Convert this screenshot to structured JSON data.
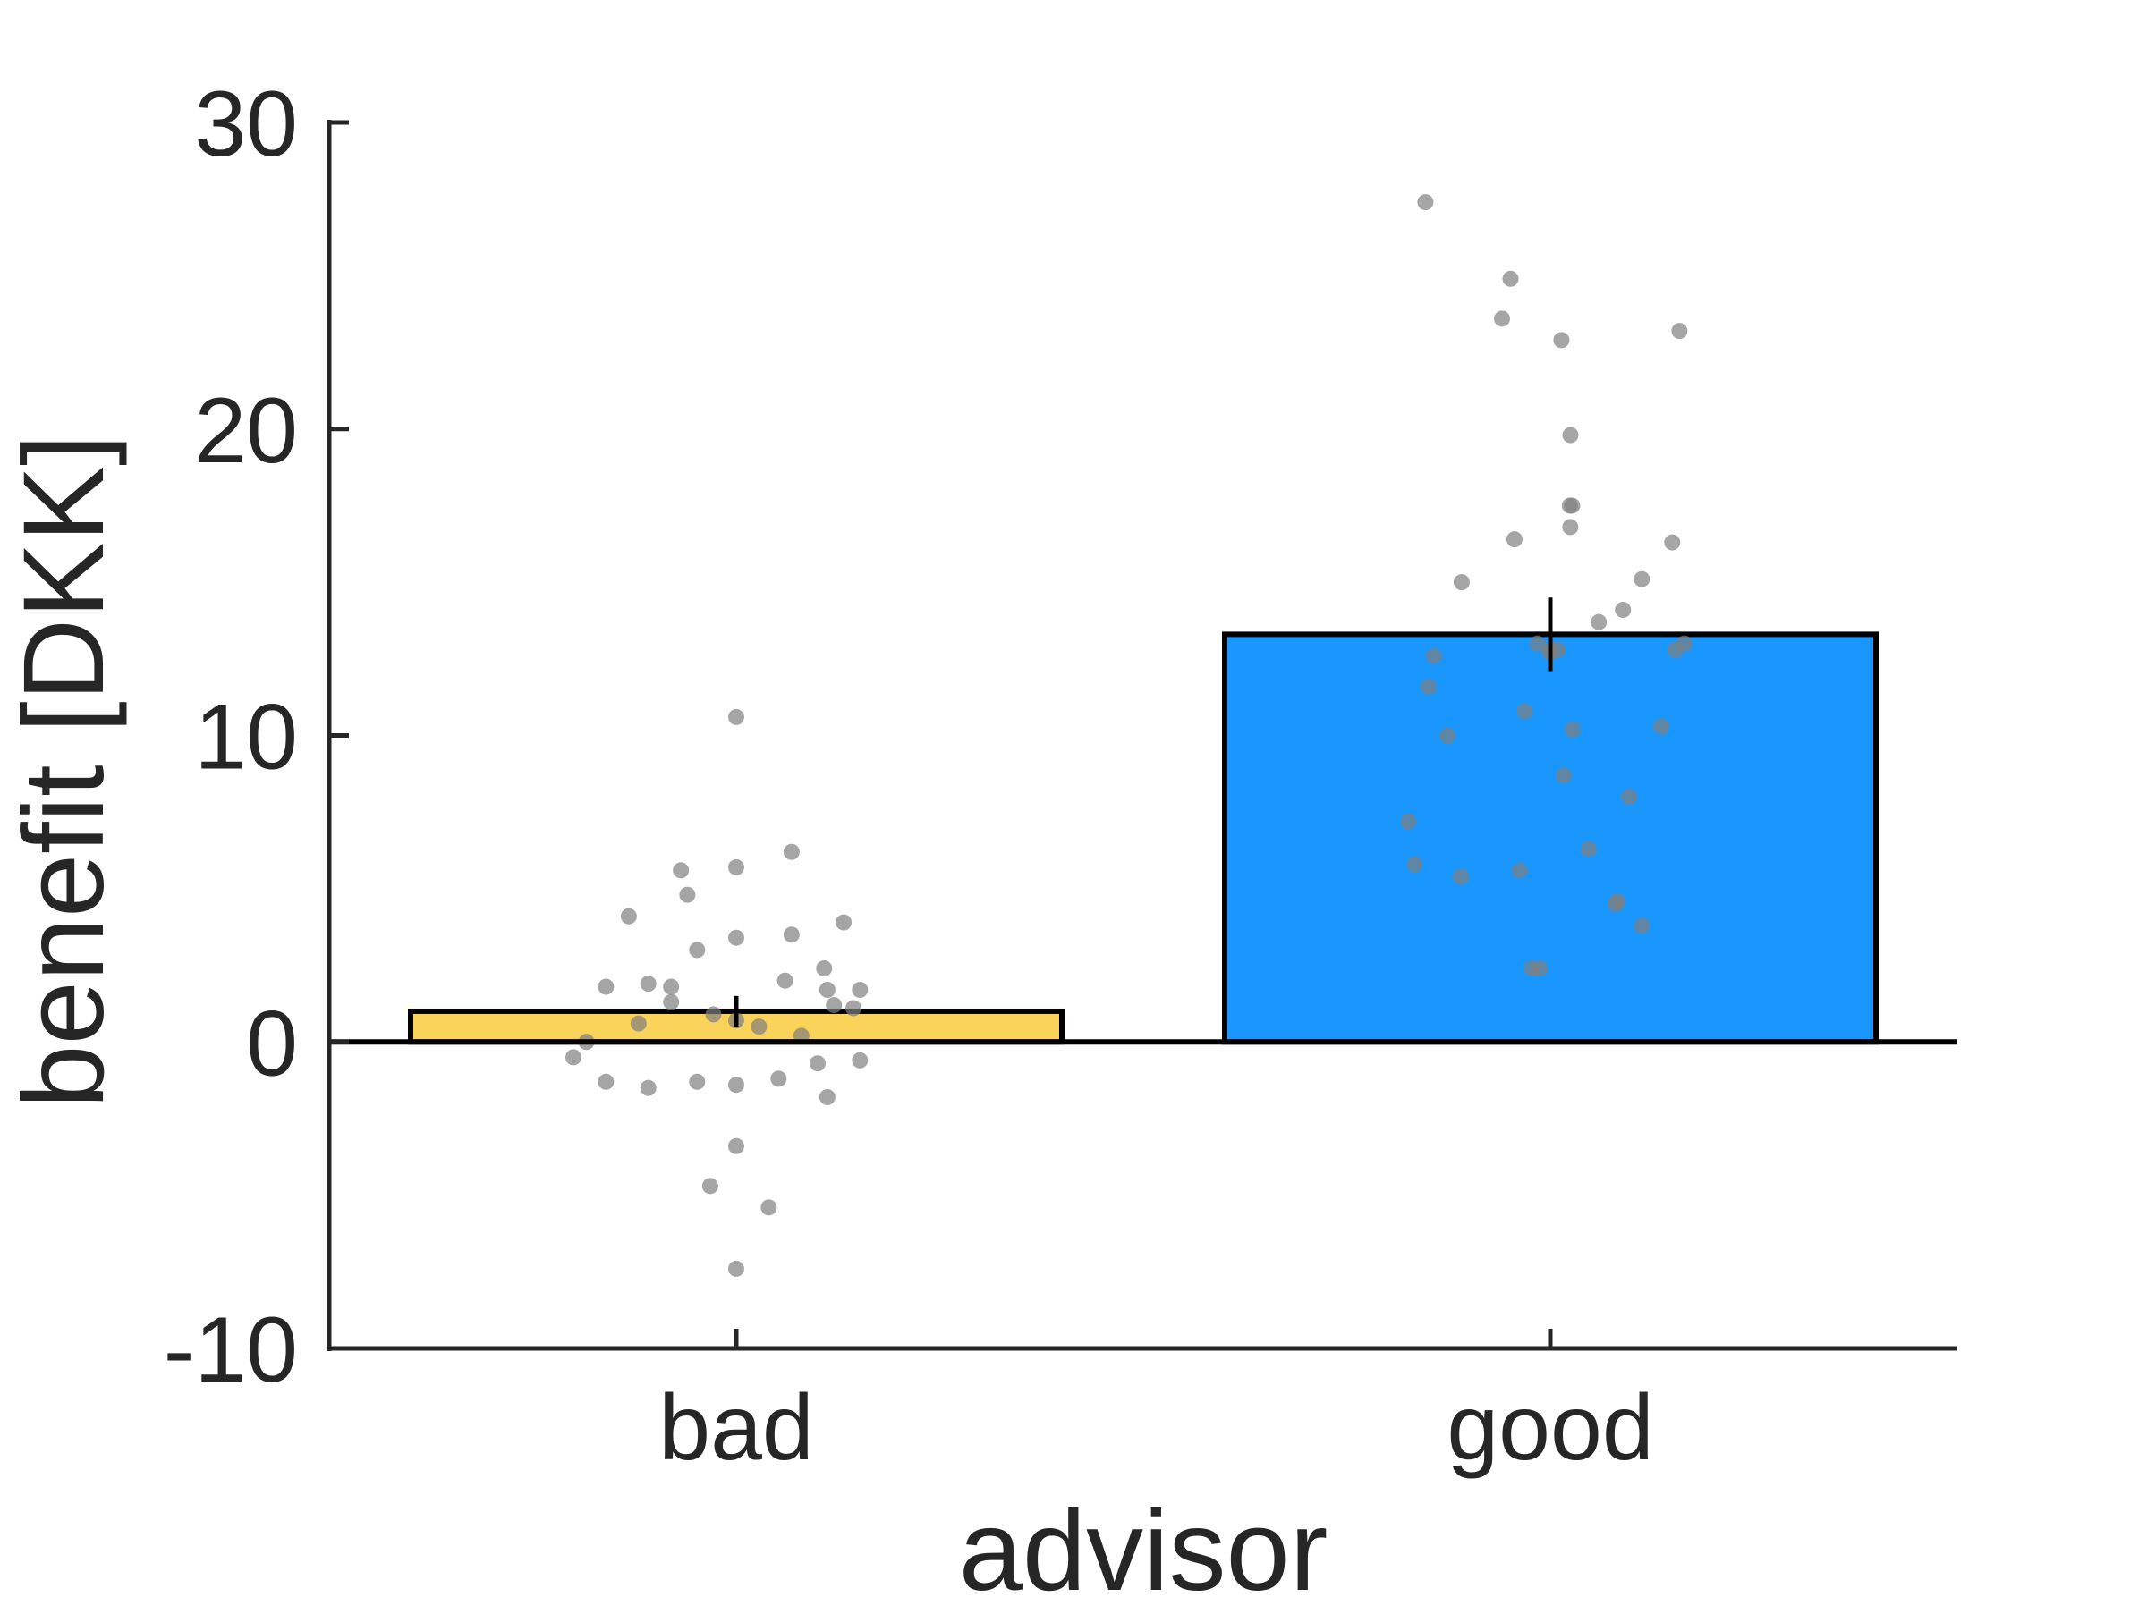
{
  "chart_data": {
    "type": "bar",
    "title": "",
    "xlabel": "advisor",
    "ylabel": "benefit [DKK]",
    "categories": [
      "bad",
      "good"
    ],
    "values": [
      1.0,
      13.3
    ],
    "errors": [
      0.5,
      1.2
    ],
    "ylim": [
      -10,
      30
    ],
    "yticks": [
      -10,
      0,
      10,
      20,
      30
    ],
    "ytick_labels": [
      "-10",
      "0",
      "10",
      "20",
      "30"
    ],
    "grid": false,
    "legend": "none",
    "colors": {
      "bad": "#FAD45A",
      "good": "#1A96FF",
      "points": "#7F7F7F",
      "axis": "#262626",
      "edge": "#000000"
    },
    "points": [
      {
        "category": "bad",
        "values": [
          10.6,
          6.2,
          5.7,
          5.6,
          4.8,
          4.1,
          3.9,
          3.5,
          3.4,
          3.0,
          2.4,
          2.0,
          1.9,
          1.8,
          1.8,
          1.7,
          1.7,
          1.3,
          1.2,
          1.1,
          0.9,
          0.7,
          0.6,
          0.5,
          0.2,
          0.0,
          -0.5,
          -0.6,
          -0.7,
          -1.2,
          -1.3,
          -1.3,
          -1.4,
          -1.5,
          -1.8,
          -3.4,
          -4.7,
          -5.4,
          -7.4
        ],
        "offsets": [
          0,
          0.17,
          0,
          -0.17,
          -0.15,
          -0.33,
          0.33,
          0.17,
          0,
          -0.12,
          0.27,
          0.15,
          -0.27,
          -0.4,
          -0.2,
          0.38,
          0.28,
          -0.2,
          0.3,
          0.36,
          -0.07,
          0,
          -0.3,
          0.07,
          0.2,
          -0.46,
          -0.5,
          0.38,
          0.25,
          0.13,
          -0.4,
          -0.12,
          0,
          -0.27,
          0.28,
          0,
          -0.08,
          0.1,
          0
        ]
      },
      {
        "category": "good",
        "values": [
          27.4,
          24.9,
          23.6,
          23.2,
          22.9,
          19.8,
          17.5,
          17.5,
          16.8,
          16.4,
          16.3,
          15.1,
          15.0,
          14.1,
          13.7,
          13.0,
          13.0,
          12.8,
          12.8,
          12.8,
          12.7,
          12.6,
          11.6,
          10.8,
          10.3,
          10.2,
          10.0,
          8.7,
          8.0,
          7.2,
          6.3,
          5.8,
          5.6,
          5.4,
          4.6,
          4.5,
          3.8,
          2.4,
          2.4
        ]
      }
    ]
  }
}
